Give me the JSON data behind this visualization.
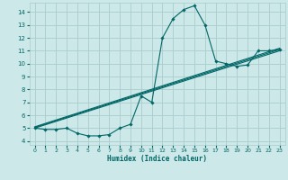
{
  "xlabel": "Humidex (Indice chaleur)",
  "bg_color": "#cce8e8",
  "grid_color": "#aacccc",
  "line_color": "#006666",
  "xlim": [
    -0.5,
    23.5
  ],
  "ylim": [
    3.7,
    14.7
  ],
  "xticks": [
    0,
    1,
    2,
    3,
    4,
    5,
    6,
    7,
    8,
    9,
    10,
    11,
    12,
    13,
    14,
    15,
    16,
    17,
    18,
    19,
    20,
    21,
    22,
    23
  ],
  "yticks": [
    4,
    5,
    6,
    7,
    8,
    9,
    10,
    11,
    12,
    13,
    14
  ],
  "main_x": [
    0,
    1,
    2,
    3,
    4,
    5,
    6,
    7,
    8,
    9,
    10,
    11,
    12,
    13,
    14,
    15,
    16,
    17,
    18,
    19,
    20,
    21,
    22,
    23
  ],
  "main_y": [
    5.0,
    4.9,
    4.9,
    5.0,
    4.6,
    4.4,
    4.4,
    4.5,
    5.0,
    5.3,
    7.5,
    7.0,
    12.0,
    13.5,
    14.2,
    14.5,
    13.0,
    10.2,
    10.0,
    9.8,
    9.9,
    11.0,
    11.0,
    11.1
  ],
  "trend_lines": [
    {
      "x0": 0,
      "y0": 5.0,
      "x1": 23,
      "y1": 11.0
    },
    {
      "x0": 0,
      "y0": 5.05,
      "x1": 23,
      "y1": 11.1
    },
    {
      "x0": 0,
      "y0": 5.1,
      "x1": 23,
      "y1": 11.2
    }
  ]
}
